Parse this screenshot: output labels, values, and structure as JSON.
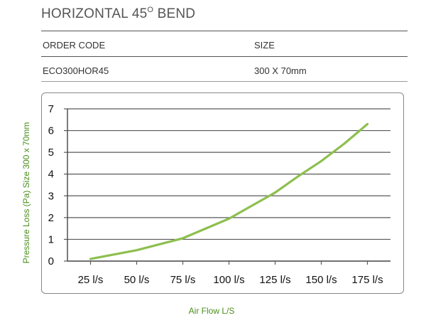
{
  "header": {
    "title_main": "HORIZONTAL 45",
    "title_sup": "O",
    "title_end": " BEND"
  },
  "table": {
    "col1_header": "ORDER CODE",
    "col2_header": "SIZE",
    "col1_value": "ECO300HOR45",
    "col2_value": "300 X 70mm"
  },
  "chart_data": {
    "type": "line",
    "xlabel": "Air Flow L/S",
    "ylabel": "Pressure Loss (Pa) Size 300 x 70mm",
    "categories": [
      "25 l/s",
      "50 l/s",
      "75 l/s",
      "100 l/s",
      "125 l/s",
      "150 l/s",
      "175 l/s"
    ],
    "ylim": [
      0,
      7
    ],
    "yticks": [
      "0",
      "1",
      "2",
      "3",
      "4",
      "5",
      "6",
      "7"
    ],
    "grid": true,
    "series": [
      {
        "color": "#8dbf4f",
        "x": [
          25,
          50,
          75,
          87.5,
          100,
          112.5,
          125,
          137.5,
          150,
          162.5,
          175
        ],
        "values": [
          0.1,
          0.5,
          1.05,
          1.5,
          1.95,
          2.55,
          3.15,
          3.9,
          4.6,
          5.4,
          6.3
        ]
      }
    ]
  }
}
